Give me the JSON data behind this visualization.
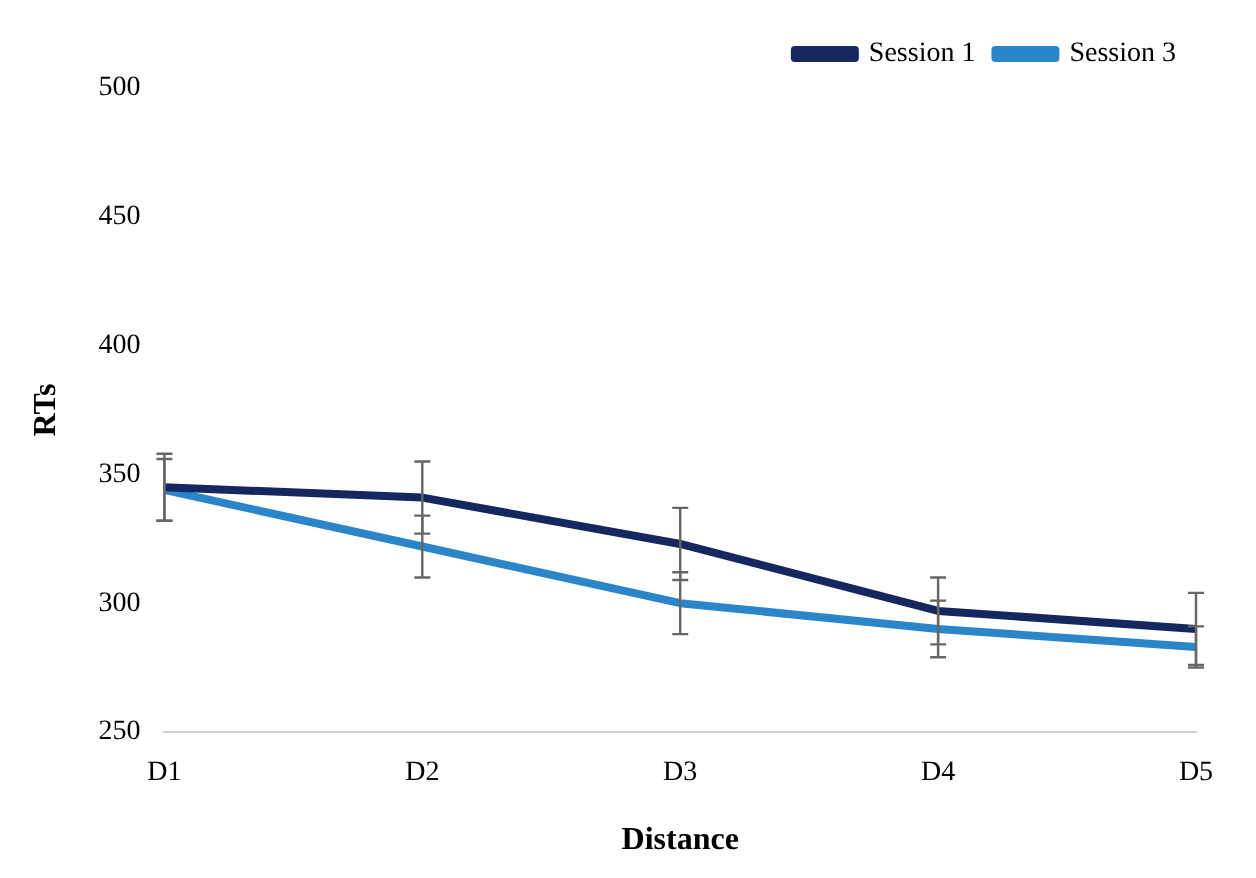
{
  "chart_data": {
    "type": "line",
    "xlabel": "Distance",
    "ylabel": "RTs",
    "categories": [
      "D1",
      "D2",
      "D3",
      "D4",
      "D5"
    ],
    "series": [
      {
        "name": "Session 1",
        "color": "#14275e",
        "values": [
          345,
          341,
          323,
          297,
          290
        ],
        "errors": [
          13,
          14,
          14,
          13,
          14
        ]
      },
      {
        "name": "Session 3",
        "color": "#2a86c8",
        "values": [
          344,
          322,
          300,
          290,
          283
        ],
        "errors": [
          12,
          12,
          12,
          11,
          8
        ]
      }
    ],
    "ylim": [
      250,
      500
    ],
    "yticks": [
      250,
      300,
      350,
      400,
      450,
      500
    ],
    "grid": false,
    "legend": "top right",
    "marker": "none"
  }
}
